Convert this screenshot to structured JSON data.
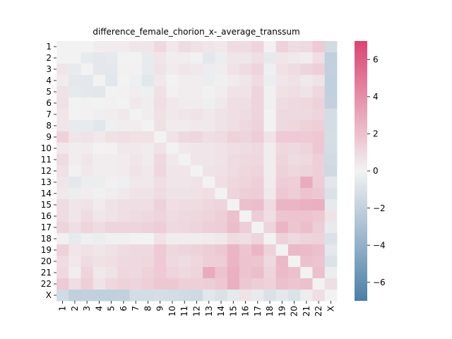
{
  "chart_data": {
    "type": "heatmap",
    "title": "difference_female_chorion_x-_average_transsum",
    "xlabel": "",
    "ylabel": "",
    "row_labels": [
      "1",
      "2",
      "3",
      "4",
      "5",
      "6",
      "7",
      "8",
      "9",
      "10",
      "11",
      "12",
      "13",
      "14",
      "15",
      "16",
      "17",
      "18",
      "19",
      "20",
      "21",
      "22",
      "X"
    ],
    "col_labels": [
      "1",
      "2",
      "3",
      "4",
      "5",
      "6",
      "7",
      "8",
      "9",
      "10",
      "11",
      "12",
      "13",
      "14",
      "15",
      "16",
      "17",
      "18",
      "19",
      "20",
      "21",
      "22",
      "X"
    ],
    "colorbar": {
      "vmin": -7,
      "vmax": 7,
      "ticks": [
        6,
        4,
        2,
        0,
        -2,
        -4,
        -6
      ],
      "tick_labels": [
        "6",
        "4",
        "2",
        "0",
        "−2",
        "−4",
        "−6"
      ],
      "colormap": "diverging",
      "low_color": "#4a7fa8",
      "mid_color": "#f2f2f2",
      "high_color": "#dc4472"
    },
    "values": [
      [
        0.0,
        0.0,
        0.0,
        0.2,
        0.3,
        0.3,
        0.5,
        0.5,
        1.0,
        0.4,
        0.9,
        0.7,
        0.5,
        0.4,
        0.9,
        0.9,
        1.2,
        0.1,
        1.3,
        0.9,
        1.0,
        1.6,
        -1.4
      ],
      [
        0.0,
        0.0,
        -0.4,
        -0.6,
        -0.5,
        0.0,
        0.0,
        -0.4,
        0.5,
        0.2,
        0.2,
        0.1,
        -0.6,
        -0.3,
        0.5,
        0.5,
        0.8,
        -0.5,
        0.5,
        0.4,
        0.2,
        0.8,
        -2.1
      ],
      [
        0.5,
        -0.4,
        0.0,
        -0.6,
        -0.6,
        0.1,
        0.1,
        -0.4,
        0.6,
        0.3,
        0.5,
        0.4,
        -0.3,
        0.2,
        0.6,
        0.9,
        1.2,
        -0.2,
        0.7,
        0.9,
        1.2,
        1.4,
        -2.0
      ],
      [
        0.3,
        -0.6,
        -0.6,
        0.0,
        -0.7,
        0.0,
        -0.2,
        -0.7,
        0.4,
        0.0,
        0.2,
        0.2,
        -0.3,
        -0.1,
        0.3,
        0.5,
        0.9,
        -0.3,
        0.5,
        0.7,
        0.4,
        0.6,
        -2.1
      ],
      [
        0.6,
        -0.5,
        -0.6,
        -0.7,
        0.0,
        0.1,
        0.2,
        -0.2,
        0.7,
        0.1,
        0.2,
        0.2,
        0.1,
        0.2,
        0.6,
        0.6,
        1.2,
        -0.1,
        0.7,
        0.8,
        0.6,
        1.1,
        -2.1
      ],
      [
        0.7,
        0.0,
        0.1,
        0.0,
        0.1,
        0.0,
        0.4,
        0.2,
        0.8,
        0.4,
        0.3,
        0.3,
        -0.2,
        0.4,
        0.8,
        0.8,
        1.2,
        -0.1,
        0.9,
        1.0,
        1.1,
        1.3,
        -2.0
      ],
      [
        0.5,
        0.0,
        0.1,
        -0.2,
        0.2,
        0.4,
        0.0,
        0.2,
        0.7,
        0.4,
        0.5,
        0.6,
        0.4,
        0.6,
        0.8,
        0.9,
        1.2,
        0.0,
        1.0,
        1.0,
        1.0,
        1.2,
        -1.3
      ],
      [
        0.5,
        -0.4,
        -0.4,
        -0.7,
        -0.2,
        0.2,
        0.2,
        0.0,
        0.7,
        0.3,
        0.3,
        0.4,
        0.4,
        0.6,
        0.8,
        1.0,
        1.3,
        0.0,
        1.0,
        1.1,
        1.3,
        1.4,
        -1.3
      ],
      [
        1.3,
        0.5,
        0.6,
        0.4,
        0.7,
        0.8,
        0.7,
        0.7,
        0.0,
        0.6,
        1.0,
        1.1,
        0.8,
        0.9,
        1.3,
        1.2,
        1.5,
        0.6,
        1.6,
        1.6,
        1.6,
        1.7,
        -1.2
      ],
      [
        0.4,
        0.2,
        0.3,
        0.0,
        0.1,
        0.4,
        0.4,
        0.3,
        0.6,
        0.0,
        0.4,
        0.5,
        0.5,
        0.6,
        0.8,
        0.9,
        1.0,
        0.2,
        1.1,
        1.0,
        1.2,
        1.7,
        -1.3
      ],
      [
        0.9,
        0.2,
        0.5,
        0.2,
        0.2,
        0.3,
        0.5,
        0.3,
        1.0,
        0.4,
        0.0,
        0.5,
        0.5,
        0.6,
        0.9,
        1.0,
        1.1,
        0.2,
        1.2,
        0.9,
        1.0,
        1.4,
        -1.4
      ],
      [
        0.7,
        0.1,
        0.4,
        0.2,
        0.2,
        0.3,
        0.6,
        0.4,
        1.1,
        0.5,
        0.5,
        0.0,
        0.6,
        0.7,
        0.9,
        1.1,
        1.2,
        0.2,
        1.3,
        1.1,
        1.2,
        1.4,
        -1.5
      ],
      [
        0.5,
        -0.6,
        -0.3,
        -0.3,
        0.1,
        -0.2,
        0.4,
        0.4,
        0.8,
        0.5,
        0.5,
        0.6,
        0.0,
        0.8,
        1.1,
        1.2,
        1.4,
        0.3,
        1.5,
        1.4,
        2.8,
        1.5,
        -0.7
      ],
      [
        0.4,
        -0.3,
        0.2,
        -0.1,
        0.2,
        0.4,
        0.6,
        0.6,
        0.9,
        0.6,
        0.6,
        0.7,
        0.8,
        0.0,
        1.2,
        1.4,
        1.5,
        0.4,
        1.7,
        1.5,
        1.9,
        1.7,
        -1.0
      ],
      [
        0.9,
        0.5,
        0.6,
        0.3,
        0.6,
        0.8,
        0.8,
        0.8,
        1.3,
        0.8,
        0.9,
        0.9,
        1.1,
        1.2,
        0.0,
        2.0,
        2.1,
        0.9,
        2.4,
        2.4,
        2.6,
        2.7,
        -0.5
      ],
      [
        0.9,
        0.5,
        0.9,
        0.5,
        0.6,
        0.8,
        0.9,
        1.0,
        1.2,
        0.9,
        1.0,
        1.1,
        1.2,
        1.4,
        2.0,
        0.0,
        1.5,
        0.8,
        1.8,
        1.9,
        1.9,
        1.7,
        0.6
      ],
      [
        1.2,
        0.8,
        1.2,
        0.9,
        1.2,
        1.2,
        1.2,
        1.3,
        1.5,
        1.0,
        1.1,
        1.2,
        1.4,
        1.5,
        2.1,
        1.5,
        0.0,
        1.2,
        2.4,
        1.8,
        2.1,
        1.5,
        -0.4
      ],
      [
        0.1,
        -0.5,
        -0.2,
        -0.3,
        -0.1,
        -0.1,
        0.0,
        0.0,
        0.6,
        0.2,
        0.2,
        0.2,
        0.3,
        0.4,
        0.9,
        0.8,
        1.2,
        0.0,
        1.3,
        1.0,
        1.2,
        1.3,
        -1.0
      ],
      [
        1.3,
        0.5,
        0.7,
        0.5,
        0.7,
        0.9,
        1.0,
        1.0,
        1.6,
        1.1,
        1.2,
        1.3,
        1.5,
        1.7,
        2.4,
        1.8,
        2.4,
        1.3,
        0.0,
        2.3,
        2.2,
        2.0,
        -0.6
      ],
      [
        0.9,
        0.4,
        0.9,
        0.7,
        0.8,
        1.0,
        1.0,
        1.1,
        1.6,
        1.0,
        0.9,
        1.1,
        1.4,
        1.5,
        2.4,
        1.9,
        1.8,
        1.0,
        2.3,
        0.0,
        2.0,
        1.8,
        -0.9
      ],
      [
        1.0,
        0.2,
        1.2,
        0.4,
        0.6,
        1.1,
        1.0,
        1.3,
        1.6,
        1.2,
        1.0,
        1.2,
        2.8,
        1.9,
        2.6,
        1.9,
        2.1,
        1.2,
        2.2,
        2.0,
        0.0,
        2.0,
        -0.3
      ],
      [
        1.6,
        0.8,
        1.4,
        0.6,
        1.1,
        1.3,
        1.2,
        1.4,
        1.7,
        1.7,
        1.4,
        1.4,
        1.5,
        1.7,
        2.7,
        1.7,
        1.5,
        1.3,
        2.0,
        1.8,
        2.0,
        0.0,
        0.8
      ],
      [
        -1.4,
        -2.1,
        -2.0,
        -2.1,
        -2.1,
        -2.0,
        -1.3,
        -1.3,
        -1.2,
        -1.3,
        -1.4,
        -1.5,
        -0.7,
        -1.0,
        -0.5,
        0.6,
        -0.4,
        -1.0,
        -0.6,
        -0.9,
        -0.3,
        0.8,
        0.0
      ]
    ]
  }
}
